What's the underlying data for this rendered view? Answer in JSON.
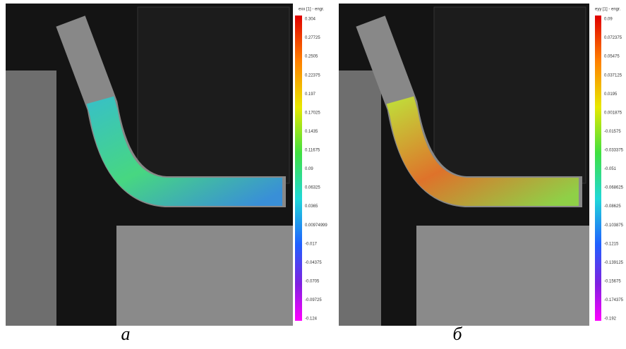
{
  "panels": [
    {
      "scale_title": "exx [1] - engr.",
      "scale_labels": [
        "0.304",
        "0.27725",
        "0.2505",
        "0.22375",
        "0.197",
        "0.17025",
        "0.1435",
        "0.11675",
        "0.09",
        "0.06325",
        "0.0365",
        "0.00974999",
        "-0.017",
        "-0.04375",
        "-0.0705",
        "-0.09725",
        "-0.124"
      ],
      "caption": "а"
    },
    {
      "scale_title": "eyy [1] - engr.",
      "scale_labels": [
        "0.09",
        "0.072375",
        "0.05475",
        "0.037125",
        "0.0195",
        "0.001875",
        "-0.01575",
        "-0.033375",
        "-0.051",
        "-0.068625",
        "-0.08625",
        "-0.103875",
        "-0.1215",
        "-0.139125",
        "-0.15675",
        "-0.174375",
        "-0.192"
      ],
      "caption": "б"
    }
  ]
}
